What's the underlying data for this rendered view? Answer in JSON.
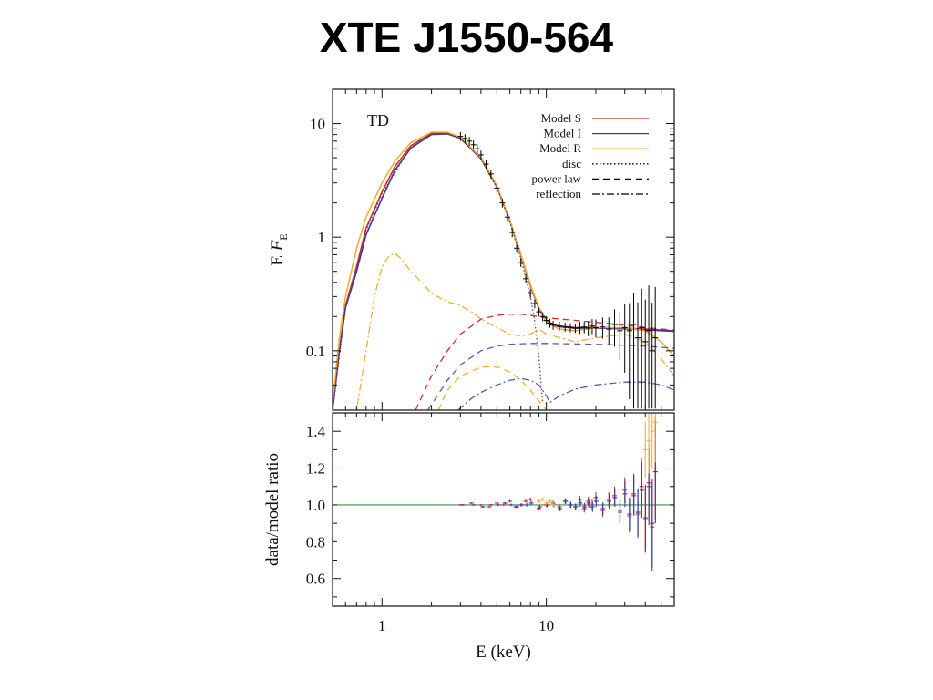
{
  "slide": {
    "title": "XTE J1550-564"
  },
  "chart_data": [
    {
      "type": "line",
      "panel": "top",
      "annotation": "TD",
      "xlabel": "",
      "ylabel": "E F",
      "ylabel_sub": "E",
      "xscale": "log",
      "yscale": "log",
      "xlim": [
        0.5,
        60
      ],
      "ylim": [
        0.03,
        20
      ],
      "yticks": [
        {
          "v": 0.1,
          "label": "0.1"
        },
        {
          "v": 1,
          "label": "1"
        },
        {
          "v": 10,
          "label": "10"
        }
      ],
      "legend_position": "top-right",
      "colors": {
        "S": "#d42a2a",
        "I": "#3a3aa0",
        "R": "#f0b030",
        "data": "#000000"
      },
      "legend": [
        {
          "label": "Model S",
          "color": "#d42a2a",
          "style": "solid"
        },
        {
          "label": "Model I",
          "color": "#3a3aa0",
          "style": "solid"
        },
        {
          "label": "Model R",
          "color": "#f0b030",
          "style": "solid"
        },
        {
          "label": "disc",
          "color": "#000000",
          "style": "dotted"
        },
        {
          "label": "power law",
          "color": "#000000",
          "style": "dashed"
        },
        {
          "label": "reflection",
          "color": "#000000",
          "style": "dashdot"
        }
      ],
      "series": [
        {
          "model": "S",
          "component": "total",
          "color": "#d42a2a",
          "style": "solid",
          "x": [
            0.5,
            0.55,
            0.6,
            0.7,
            0.8,
            1.0,
            1.2,
            1.5,
            2.0,
            2.5,
            3.0,
            4.0,
            5.0,
            6.0,
            7.0,
            8.0,
            9.0,
            10.0,
            11.0,
            12.0,
            15.0,
            20.0,
            30.0,
            40.0,
            60.0
          ],
          "y": [
            0.03,
            0.1,
            0.25,
            0.55,
            1.2,
            2.5,
            4.2,
            6.4,
            8.2,
            8.2,
            7.5,
            5.0,
            2.8,
            1.4,
            0.7,
            0.38,
            0.24,
            0.185,
            0.17,
            0.165,
            0.16,
            0.16,
            0.158,
            0.155,
            0.15
          ]
        },
        {
          "model": "I",
          "component": "total",
          "color": "#3a3aa0",
          "style": "solid",
          "x": [
            0.5,
            0.55,
            0.6,
            0.7,
            0.8,
            1.0,
            1.2,
            1.5,
            2.0,
            2.5,
            3.0,
            4.0,
            5.0,
            6.0,
            7.0,
            8.0,
            9.0,
            10.0,
            11.0,
            12.0,
            15.0,
            20.0,
            30.0,
            40.0,
            60.0
          ],
          "y": [
            0.03,
            0.1,
            0.24,
            0.5,
            1.05,
            2.2,
            3.9,
            6.1,
            8.0,
            8.1,
            7.4,
            4.9,
            2.75,
            1.38,
            0.69,
            0.37,
            0.235,
            0.18,
            0.168,
            0.163,
            0.158,
            0.158,
            0.156,
            0.153,
            0.148
          ]
        },
        {
          "model": "R",
          "component": "total",
          "color": "#f0b030",
          "style": "solid",
          "x": [
            0.5,
            0.55,
            0.6,
            0.7,
            0.8,
            1.0,
            1.2,
            1.5,
            2.0,
            2.5,
            3.0,
            4.0,
            5.0,
            6.0,
            7.0,
            8.0,
            9.0,
            10.0,
            11.0,
            12.0,
            15.0,
            20.0,
            30.0,
            40.0,
            50.0,
            60.0
          ],
          "y": [
            0.035,
            0.13,
            0.3,
            0.8,
            1.5,
            3.0,
            4.7,
            6.8,
            8.4,
            8.4,
            7.6,
            5.0,
            2.8,
            1.4,
            0.7,
            0.38,
            0.24,
            0.18,
            0.165,
            0.155,
            0.15,
            0.16,
            0.16,
            0.15,
            0.12,
            0.09
          ]
        },
        {
          "model": "S",
          "component": "disc",
          "color": "#8a3a3a",
          "style": "dotted",
          "x": [
            0.5,
            0.6,
            0.8,
            1.0,
            1.5,
            2.0,
            2.5,
            3.0,
            4.0,
            5.0,
            6.0,
            7.0,
            8.0,
            8.5,
            9.0,
            9.5
          ],
          "y": [
            0.03,
            0.24,
            1.15,
            2.4,
            6.3,
            8.1,
            8.1,
            7.4,
            4.9,
            2.75,
            1.35,
            0.65,
            0.3,
            0.18,
            0.09,
            0.035
          ]
        },
        {
          "model": "S",
          "component": "power law",
          "color": "#d42a2a",
          "style": "dashed",
          "x": [
            1.6,
            2.0,
            2.5,
            3.0,
            4.0,
            5.0,
            6.0,
            7.0,
            8.0,
            10.0,
            15.0,
            20.0,
            30.0,
            40.0,
            60.0
          ],
          "y": [
            0.03,
            0.06,
            0.1,
            0.14,
            0.19,
            0.205,
            0.21,
            0.21,
            0.205,
            0.195,
            0.185,
            0.178,
            0.168,
            0.16,
            0.152
          ]
        },
        {
          "model": "I",
          "component": "power law",
          "color": "#5a5ab8",
          "style": "dashed",
          "x": [
            1.9,
            2.5,
            3.0,
            4.0,
            5.0,
            6.0,
            8.0,
            10.0,
            15.0,
            20.0,
            30.0,
            40.0,
            60.0
          ],
          "y": [
            0.03,
            0.055,
            0.075,
            0.1,
            0.11,
            0.114,
            0.116,
            0.116,
            0.115,
            0.114,
            0.112,
            0.11,
            0.105
          ]
        },
        {
          "model": "R",
          "component": "power law",
          "color": "#f0b030",
          "style": "dashed",
          "x": [
            2.2,
            2.5,
            3.0,
            4.0,
            5.0,
            6.0,
            7.0,
            8.0,
            9.0,
            10.0
          ],
          "y": [
            0.03,
            0.045,
            0.06,
            0.072,
            0.072,
            0.065,
            0.055,
            0.045,
            0.036,
            0.03
          ]
        },
        {
          "model": "I",
          "component": "reflection",
          "color": "#5a5ab8",
          "style": "dashdot",
          "x": [
            2.9,
            3.5,
            4.0,
            5.0,
            6.0,
            7.0,
            8.0,
            9.0,
            10.0,
            10.5,
            12.0,
            15.0,
            20.0,
            30.0,
            40.0,
            50.0,
            60.0
          ],
          "y": [
            0.03,
            0.038,
            0.043,
            0.05,
            0.055,
            0.057,
            0.055,
            0.05,
            0.04,
            0.035,
            0.04,
            0.046,
            0.05,
            0.053,
            0.053,
            0.05,
            0.045
          ]
        },
        {
          "model": "R",
          "component": "reflection",
          "color": "#f0b030",
          "style": "dashdot",
          "x": [
            0.5,
            0.7,
            0.8,
            0.9,
            1.0,
            1.1,
            1.2,
            1.3,
            1.5,
            1.8,
            2.0,
            2.5,
            3.0,
            3.5,
            4.0,
            5.0,
            6.0,
            7.0,
            8.0,
            9.0,
            10.0,
            15.0,
            20.0,
            30.0,
            40.0,
            50.0,
            60.0
          ],
          "y": [
            0.03,
            0.03,
            0.1,
            0.3,
            0.55,
            0.68,
            0.72,
            0.65,
            0.5,
            0.38,
            0.32,
            0.27,
            0.25,
            0.22,
            0.19,
            0.16,
            0.14,
            0.135,
            0.14,
            0.155,
            0.14,
            0.12,
            0.13,
            0.14,
            0.12,
            0.085,
            0.06
          ]
        }
      ],
      "data_points": {
        "x": [
          3,
          3.2,
          3.4,
          3.6,
          3.8,
          4,
          4.3,
          4.6,
          5,
          5.4,
          5.8,
          6.2,
          6.6,
          7,
          7.5,
          8,
          8.5,
          9,
          9.5,
          10,
          10.5,
          11,
          12,
          13,
          14,
          15,
          16,
          17,
          18,
          19,
          20,
          22,
          24,
          26,
          28,
          30,
          32,
          34,
          36,
          38,
          40,
          42,
          44,
          46
        ],
        "y": [
          7.7,
          7.4,
          7.0,
          6.5,
          6.0,
          5.3,
          4.4,
          3.6,
          2.7,
          2.0,
          1.5,
          1.1,
          0.8,
          0.6,
          0.43,
          0.32,
          0.26,
          0.22,
          0.2,
          0.185,
          0.175,
          0.168,
          0.165,
          0.162,
          0.16,
          0.158,
          0.16,
          0.162,
          0.158,
          0.165,
          0.16,
          0.162,
          0.155,
          0.17,
          0.15,
          0.16,
          0.15,
          0.17,
          0.13,
          0.16,
          0.12,
          0.15,
          0.1,
          0.13
        ],
        "err": [
          0.03,
          0.03,
          0.03,
          0.03,
          0.03,
          0.03,
          0.03,
          0.03,
          0.03,
          0.03,
          0.03,
          0.03,
          0.03,
          0.03,
          0.03,
          0.03,
          0.03,
          0.03,
          0.03,
          0.03,
          0.03,
          0.03,
          0.03,
          0.03,
          0.03,
          0.03,
          0.04,
          0.04,
          0.05,
          0.05,
          0.06,
          0.07,
          0.09,
          0.12,
          0.15,
          0.2,
          0.25,
          0.3,
          0.35,
          0.4,
          0.45,
          0.5,
          0.55,
          0.6
        ]
      }
    },
    {
      "type": "scatter",
      "panel": "bottom",
      "xlabel": "E (keV)",
      "ylabel": "data/model ratio",
      "xscale": "log",
      "yscale": "linear",
      "xlim": [
        0.5,
        60
      ],
      "ylim": [
        0.45,
        1.5
      ],
      "xticks": [
        {
          "v": 1,
          "label": "1"
        },
        {
          "v": 10,
          "label": "10"
        }
      ],
      "yticks": [
        {
          "v": 0.6,
          "label": "0.6"
        },
        {
          "v": 0.8,
          "label": "0.8"
        },
        {
          "v": 1.0,
          "label": "1.0"
        },
        {
          "v": 1.2,
          "label": "1.2"
        },
        {
          "v": 1.4,
          "label": "1.4"
        }
      ],
      "reference_line": {
        "y": 1.0,
        "color": "#2a9a4a"
      },
      "series": [
        {
          "model": "S",
          "color": "#d42a2a",
          "x": [
            3,
            3.5,
            4,
            4.5,
            5,
            5.5,
            6,
            6.5,
            7,
            7.5,
            8,
            9,
            10,
            11,
            12,
            13,
            14,
            15,
            16,
            17,
            18,
            19,
            20,
            22,
            24,
            26,
            28,
            30,
            32,
            34,
            36,
            38,
            40,
            42,
            44,
            46
          ],
          "y": [
            1.0,
            1.01,
            1.0,
            0.99,
            1.01,
            1.0,
            1.02,
            0.99,
            1.0,
            1.02,
            1.03,
            0.98,
            1.0,
            1.01,
            0.99,
            1.02,
            1.0,
            0.99,
            1.03,
            0.98,
            1.02,
            1.0,
            1.04,
            0.97,
            1.03,
            1.05,
            0.96,
            1.08,
            0.94,
            1.06,
            0.95,
            1.1,
            0.92,
            1.12,
            0.88,
            1.2
          ],
          "err": [
            0.005,
            0.005,
            0.005,
            0.005,
            0.006,
            0.006,
            0.007,
            0.007,
            0.008,
            0.009,
            0.01,
            0.01,
            0.012,
            0.013,
            0.014,
            0.015,
            0.016,
            0.017,
            0.02,
            0.022,
            0.025,
            0.028,
            0.03,
            0.035,
            0.04,
            0.05,
            0.06,
            0.07,
            0.09,
            0.11,
            0.13,
            0.15,
            0.18,
            0.21,
            0.24,
            0.28
          ]
        },
        {
          "model": "I",
          "color": "#3a3aa0",
          "x": [
            3.1,
            3.6,
            4.1,
            4.6,
            5.1,
            5.6,
            6.1,
            6.6,
            7.1,
            7.6,
            8.1,
            9.1,
            10.1,
            11.1,
            12.1,
            13.1,
            14.1,
            15.1,
            16.1,
            17.1,
            18.1,
            19.1,
            20.1,
            22.1,
            24.1,
            26.1,
            28.1,
            30.1,
            32.1,
            34.1,
            36.1,
            38.1,
            40.1,
            42.1,
            44.1,
            46.1
          ],
          "y": [
            1.0,
            1.0,
            0.99,
            1.0,
            1.0,
            1.01,
            1.0,
            0.99,
            1.0,
            1.0,
            1.01,
            0.99,
            1.0,
            1.0,
            0.98,
            1.02,
            1.0,
            0.99,
            1.01,
            0.99,
            1.01,
            0.99,
            1.02,
            0.98,
            1.02,
            1.04,
            0.97,
            1.06,
            0.95,
            1.05,
            0.96,
            1.08,
            0.93,
            1.1,
            0.9,
            1.18
          ],
          "err": [
            0.005,
            0.005,
            0.005,
            0.005,
            0.006,
            0.006,
            0.007,
            0.007,
            0.008,
            0.009,
            0.01,
            0.01,
            0.012,
            0.013,
            0.014,
            0.015,
            0.016,
            0.017,
            0.02,
            0.022,
            0.025,
            0.028,
            0.03,
            0.035,
            0.04,
            0.05,
            0.06,
            0.07,
            0.09,
            0.11,
            0.13,
            0.15,
            0.18,
            0.21,
            0.24,
            0.28
          ]
        },
        {
          "model": "R",
          "color": "#f0b030",
          "x": [
            9,
            9.5,
            10,
            10.5,
            11,
            40,
            42,
            44,
            46
          ],
          "y": [
            1.02,
            1.03,
            1.01,
            1.02,
            1.0,
            1.3,
            1.35,
            1.4,
            1.45
          ],
          "err": [
            0.01,
            0.01,
            0.012,
            0.012,
            0.013,
            0.15,
            0.18,
            0.2,
            0.22
          ]
        }
      ]
    }
  ]
}
